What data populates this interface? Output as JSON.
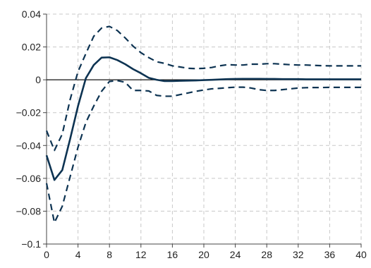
{
  "chart_data": {
    "type": "line",
    "title": "",
    "xlabel": "",
    "ylabel": "",
    "xlim": [
      0,
      40
    ],
    "ylim": [
      -0.1,
      0.04
    ],
    "xticks": [
      0,
      4,
      8,
      12,
      16,
      20,
      24,
      28,
      32,
      36,
      40
    ],
    "yticks": [
      0.04,
      0.02,
      0,
      -0.02,
      -0.04,
      -0.06,
      -0.08,
      -0.1
    ],
    "xtick_labels": [
      "0",
      "4",
      "8",
      "12",
      "16",
      "20",
      "24",
      "28",
      "32",
      "36",
      "40"
    ],
    "ytick_labels": [
      "0.04",
      "0.02",
      "0",
      "−0.02",
      "−0.04",
      "−0.06",
      "−0.08",
      "−0.1"
    ],
    "grid": true,
    "zero_line": true,
    "x": [
      0,
      1,
      2,
      3,
      4,
      5,
      6,
      7,
      8,
      9,
      10,
      11,
      12,
      13,
      14,
      15,
      16,
      17,
      18,
      19,
      20,
      21,
      22,
      23,
      24,
      25,
      26,
      27,
      28,
      29,
      30,
      31,
      32,
      33,
      34,
      35,
      36,
      37,
      38,
      39,
      40
    ],
    "series": [
      {
        "style": "solid",
        "color": "#0d3352",
        "values": [
          -0.046,
          -0.061,
          -0.055,
          -0.036,
          -0.016,
          0.001,
          0.009,
          0.0135,
          0.0137,
          0.012,
          0.0095,
          0.0065,
          0.004,
          0.0012,
          0.0,
          -0.0008,
          -0.0008,
          -0.0006,
          -0.0005,
          -0.0004,
          -0.0002,
          0.0,
          0.0002,
          0.0004,
          0.0005,
          0.0006,
          0.0006,
          0.0006,
          0.0005,
          0.0005,
          0.0004,
          0.0004,
          0.0004,
          0.0003,
          0.0003,
          0.0003,
          0.0003,
          0.0003,
          0.0003,
          0.0003,
          0.0003
        ]
      },
      {
        "style": "dashed",
        "color": "#0d3352",
        "values": [
          -0.031,
          -0.043,
          -0.033,
          -0.012,
          0.005,
          0.016,
          0.0265,
          0.0315,
          0.0325,
          0.03,
          0.0255,
          0.0205,
          0.0165,
          0.0135,
          0.011,
          0.01,
          0.0085,
          0.0078,
          0.007,
          0.0068,
          0.007,
          0.0075,
          0.0085,
          0.0092,
          0.009,
          0.009,
          0.0095,
          0.0095,
          0.0098,
          0.0098,
          0.0095,
          0.0092,
          0.009,
          0.009,
          0.0088,
          0.0086,
          0.0085,
          0.0085,
          0.0085,
          0.0085,
          0.0085
        ]
      },
      {
        "style": "dashed",
        "color": "#0d3352",
        "values": [
          -0.063,
          -0.087,
          -0.077,
          -0.059,
          -0.041,
          -0.026,
          -0.016,
          -0.007,
          -0.001,
          -0.0005,
          -0.0015,
          -0.0065,
          -0.0065,
          -0.0068,
          -0.0095,
          -0.01,
          -0.01,
          -0.009,
          -0.008,
          -0.007,
          -0.0062,
          -0.0055,
          -0.0052,
          -0.0048,
          -0.0045,
          -0.0045,
          -0.005,
          -0.006,
          -0.0065,
          -0.0065,
          -0.006,
          -0.0055,
          -0.005,
          -0.0048,
          -0.0047,
          -0.0047,
          -0.0046,
          -0.0046,
          -0.0046,
          -0.0046,
          -0.0046
        ]
      }
    ]
  }
}
